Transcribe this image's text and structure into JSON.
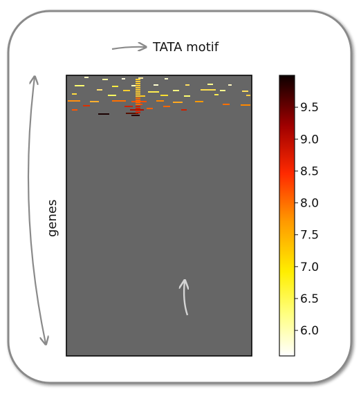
{
  "annotations": {
    "top_label": "TATA motif",
    "side_label": "genes"
  },
  "colorbar": {
    "ticks": [
      "9.5",
      "9.0",
      "8.5",
      "8.0",
      "7.5",
      "7.0",
      "6.5",
      "6.0"
    ],
    "tick_values": [
      9.5,
      9.0,
      8.5,
      8.0,
      7.5,
      7.0,
      6.5,
      6.0
    ],
    "range": [
      5.6,
      10.0
    ],
    "colormap": "hot"
  },
  "colors": {
    "heatmap_background": "#666666",
    "arrow_gray": "#8a8a8a",
    "arrow_light": "#cfcfcf",
    "frame_border": "#888888"
  }
}
